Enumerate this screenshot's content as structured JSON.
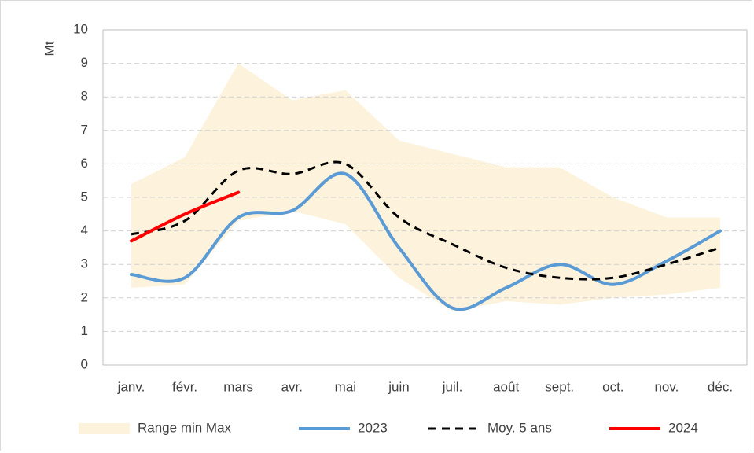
{
  "chart_data": {
    "type": "line",
    "y_label": "Mt",
    "categories": [
      "janv.",
      "févr.",
      "mars",
      "avr.",
      "mai",
      "juin",
      "juil.",
      "août",
      "sept.",
      "oct.",
      "nov.",
      "déc."
    ],
    "series": [
      {
        "name": "Range min Max",
        "color": "#fdf3dc",
        "low": [
          2.3,
          2.4,
          4.3,
          4.6,
          4.2,
          2.6,
          1.6,
          1.9,
          1.8,
          2.0,
          2.1,
          2.3
        ],
        "high": [
          5.4,
          6.2,
          9.0,
          7.9,
          8.2,
          6.7,
          6.3,
          5.9,
          5.9,
          5.0,
          4.4,
          4.4
        ]
      },
      {
        "name": "2023",
        "color": "#5b9bd5",
        "values": [
          2.7,
          2.6,
          4.4,
          4.6,
          5.7,
          3.5,
          1.7,
          2.3,
          3.0,
          2.4,
          3.1,
          4.0
        ]
      },
      {
        "name": "Moy. 5 ans",
        "color": "#000000",
        "dashed": true,
        "values": [
          3.9,
          4.3,
          5.8,
          5.7,
          6.0,
          4.4,
          3.6,
          2.9,
          2.6,
          2.6,
          3.0,
          3.5
        ]
      },
      {
        "name": "2024",
        "color": "#ff0000",
        "values": [
          3.7,
          4.5,
          5.15,
          null,
          null,
          null,
          null,
          null,
          null,
          null,
          null,
          null
        ]
      }
    ],
    "ylim": [
      0,
      10
    ],
    "yticks": [
      0,
      1,
      2,
      3,
      4,
      5,
      6,
      7,
      8,
      9,
      10
    ],
    "grid": true,
    "legend": "bottom"
  }
}
